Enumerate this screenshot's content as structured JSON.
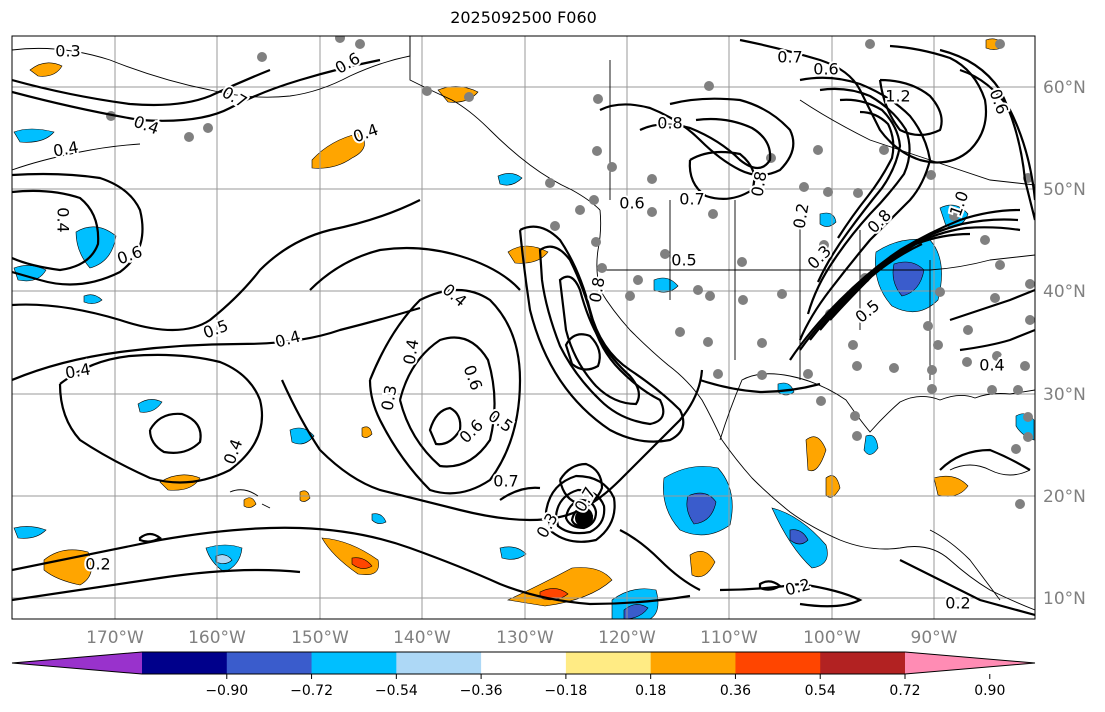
{
  "title": "2025092500 F060",
  "lon_labels": [
    "170°W",
    "160°W",
    "150°W",
    "140°W",
    "130°W",
    "120°W",
    "110°W",
    "100°W",
    "90°W"
  ],
  "lat_labels": [
    "60°N",
    "50°N",
    "40°N",
    "30°N",
    "20°N",
    "10°N"
  ],
  "colorbar": {
    "colors": [
      "#9932cc",
      "#00008b",
      "#3a5ccc",
      "#00bfff",
      "#add8f6",
      "#ffffff",
      "#ffeb84",
      "#ffa500",
      "#ff4500",
      "#b22222",
      "#ff8cb4"
    ],
    "tick_labels": [
      "−0.90",
      "−0.72",
      "−0.54",
      "−0.36",
      "−0.18",
      "0.18",
      "0.36",
      "0.54",
      "0.72",
      "0.90"
    ],
    "extend": "both"
  },
  "contour_labels": [
    "0.3",
    "0.6",
    "0.7",
    "0.4",
    "0.4",
    "0.4",
    "0.6",
    "0.4",
    "0.5",
    "0.4",
    "0.4",
    "0.5",
    "0.6",
    "0.4",
    "0.4",
    "0.3",
    "0.6",
    "0.7",
    "0.2",
    "0.3",
    "0.7",
    "0.6",
    "0.5",
    "0.8",
    "0.7",
    "0.6",
    "0.2",
    "0.8",
    "0.7",
    "1.2",
    "0.6",
    "1.0",
    "0.3",
    "0.8",
    "0.5",
    "0.4",
    "0.2",
    "0.2",
    "0.8",
    "0.4"
  ]
}
